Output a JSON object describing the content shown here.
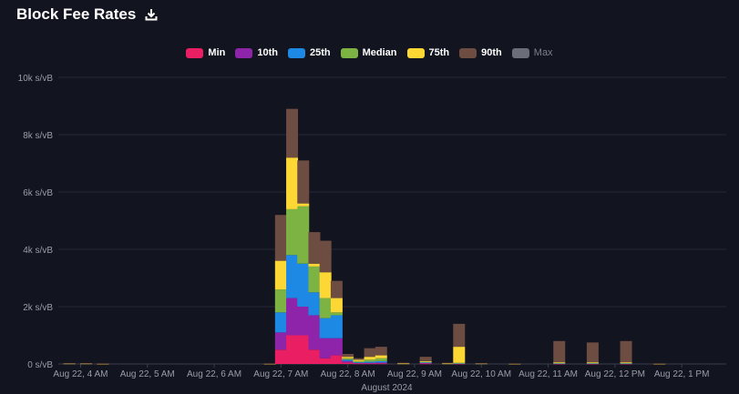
{
  "header": {
    "title": "Block Fee Rates"
  },
  "icons": {
    "download": "download-icon"
  },
  "colors": {
    "background": "#121420",
    "grid": "#262938",
    "axis_text": "#9a9ca8",
    "min": "#e91e63",
    "p10": "#8e24aa",
    "p25": "#1e88e5",
    "median": "#7cb342",
    "p75": "#fdd835",
    "p90": "#6d4c41",
    "max": "#6b6d78"
  },
  "chart_data": {
    "type": "bar",
    "stacked": true,
    "title": "Block Fee Rates",
    "xlabel": "August 2024",
    "ylabel": "",
    "y_unit": "s/vB",
    "ylim": [
      0,
      10000
    ],
    "y_ticks": [
      0,
      2000,
      4000,
      6000,
      8000,
      10000
    ],
    "y_tick_labels": [
      "0 s/vB",
      "2k s/vB",
      "4k s/vB",
      "6k s/vB",
      "8k s/vB",
      "10k s/vB"
    ],
    "x_range": [
      "2024-08-22T03:40",
      "2024-08-22T13:40"
    ],
    "x_ticks": [
      "2024-08-22T04:00",
      "2024-08-22T05:00",
      "2024-08-22T06:00",
      "2024-08-22T07:00",
      "2024-08-22T08:00",
      "2024-08-22T09:00",
      "2024-08-22T10:00",
      "2024-08-22T11:00",
      "2024-08-22T12:00",
      "2024-08-22T13:00"
    ],
    "x_tick_labels": [
      "Aug 22, 4 AM",
      "Aug 22, 5 AM",
      "Aug 22, 6 AM",
      "Aug 22, 7 AM",
      "Aug 22, 8 AM",
      "Aug 22, 9 AM",
      "Aug 22, 10 AM",
      "Aug 22, 11 AM",
      "Aug 22, 12 PM",
      "Aug 22, 1 PM"
    ],
    "grid": true,
    "legend_position": "top-center",
    "legend": [
      {
        "key": "min",
        "label": "Min",
        "visible": true
      },
      {
        "key": "p10",
        "label": "10th",
        "visible": true
      },
      {
        "key": "p25",
        "label": "25th",
        "visible": true
      },
      {
        "key": "median",
        "label": "Median",
        "visible": true
      },
      {
        "key": "p75",
        "label": "75th",
        "visible": true
      },
      {
        "key": "p90",
        "label": "90th",
        "visible": true
      },
      {
        "key": "max",
        "label": "Max",
        "visible": false
      }
    ],
    "series_order": [
      "min",
      "p10",
      "p25",
      "median",
      "p75",
      "p90"
    ],
    "blocks": [
      {
        "time": "2024-08-22T03:50",
        "min": 0,
        "p10": 0,
        "p25": 0,
        "median": 0,
        "p75": 20,
        "p90": 30
      },
      {
        "time": "2024-08-22T04:05",
        "min": 0,
        "p10": 0,
        "p25": 0,
        "median": 0,
        "p75": 20,
        "p90": 30
      },
      {
        "time": "2024-08-22T04:20",
        "min": 0,
        "p10": 0,
        "p25": 0,
        "median": 0,
        "p75": 10,
        "p90": 20
      },
      {
        "time": "2024-08-22T06:50",
        "min": 0,
        "p10": 0,
        "p25": 0,
        "median": 0,
        "p75": 10,
        "p90": 20
      },
      {
        "time": "2024-08-22T07:00",
        "min": 500,
        "p10": 1100,
        "p25": 1800,
        "median": 2600,
        "p75": 3600,
        "p90": 5200
      },
      {
        "time": "2024-08-22T07:10",
        "min": 1000,
        "p10": 2300,
        "p25": 3800,
        "median": 5400,
        "p75": 7200,
        "p90": 8900
      },
      {
        "time": "2024-08-22T07:20",
        "min": 1000,
        "p10": 2000,
        "p25": 3500,
        "median": 5500,
        "p75": 5600,
        "p90": 7100
      },
      {
        "time": "2024-08-22T07:30",
        "min": 500,
        "p10": 1700,
        "p25": 2500,
        "median": 3400,
        "p75": 3500,
        "p90": 4600
      },
      {
        "time": "2024-08-22T07:40",
        "min": 200,
        "p10": 900,
        "p25": 1600,
        "median": 2300,
        "p75": 3200,
        "p90": 4300
      },
      {
        "time": "2024-08-22T07:50",
        "min": 300,
        "p10": 900,
        "p25": 1700,
        "median": 1800,
        "p75": 2300,
        "p90": 2900
      },
      {
        "time": "2024-08-22T08:00",
        "min": 50,
        "p10": 100,
        "p25": 150,
        "median": 200,
        "p75": 250,
        "p90": 350
      },
      {
        "time": "2024-08-22T08:10",
        "min": 20,
        "p10": 40,
        "p25": 60,
        "median": 100,
        "p75": 150,
        "p90": 200
      },
      {
        "time": "2024-08-22T08:20",
        "min": 20,
        "p10": 40,
        "p25": 80,
        "median": 150,
        "p75": 250,
        "p90": 550
      },
      {
        "time": "2024-08-22T08:30",
        "min": 20,
        "p10": 50,
        "p25": 100,
        "median": 200,
        "p75": 300,
        "p90": 600
      },
      {
        "time": "2024-08-22T08:50",
        "min": 0,
        "p10": 0,
        "p25": 0,
        "median": 0,
        "p75": 20,
        "p90": 40
      },
      {
        "time": "2024-08-22T09:10",
        "min": 20,
        "p10": 40,
        "p25": 60,
        "median": 80,
        "p75": 100,
        "p90": 250
      },
      {
        "time": "2024-08-22T09:30",
        "min": 0,
        "p10": 0,
        "p25": 0,
        "median": 0,
        "p75": 20,
        "p90": 40
      },
      {
        "time": "2024-08-22T09:40",
        "min": 10,
        "p10": 20,
        "p25": 30,
        "median": 40,
        "p75": 600,
        "p90": 1400
      },
      {
        "time": "2024-08-22T10:00",
        "min": 0,
        "p10": 0,
        "p25": 0,
        "median": 0,
        "p75": 20,
        "p90": 30
      },
      {
        "time": "2024-08-22T10:30",
        "min": 0,
        "p10": 0,
        "p25": 0,
        "median": 0,
        "p75": 10,
        "p90": 20
      },
      {
        "time": "2024-08-22T11:10",
        "min": 10,
        "p10": 20,
        "p25": 30,
        "median": 40,
        "p75": 60,
        "p90": 800
      },
      {
        "time": "2024-08-22T11:40",
        "min": 10,
        "p10": 20,
        "p25": 30,
        "median": 40,
        "p75": 60,
        "p90": 750
      },
      {
        "time": "2024-08-22T12:10",
        "min": 10,
        "p10": 20,
        "p25": 30,
        "median": 40,
        "p75": 60,
        "p90": 800
      },
      {
        "time": "2024-08-22T12:40",
        "min": 0,
        "p10": 0,
        "p25": 0,
        "median": 0,
        "p75": 10,
        "p90": 20
      }
    ]
  }
}
